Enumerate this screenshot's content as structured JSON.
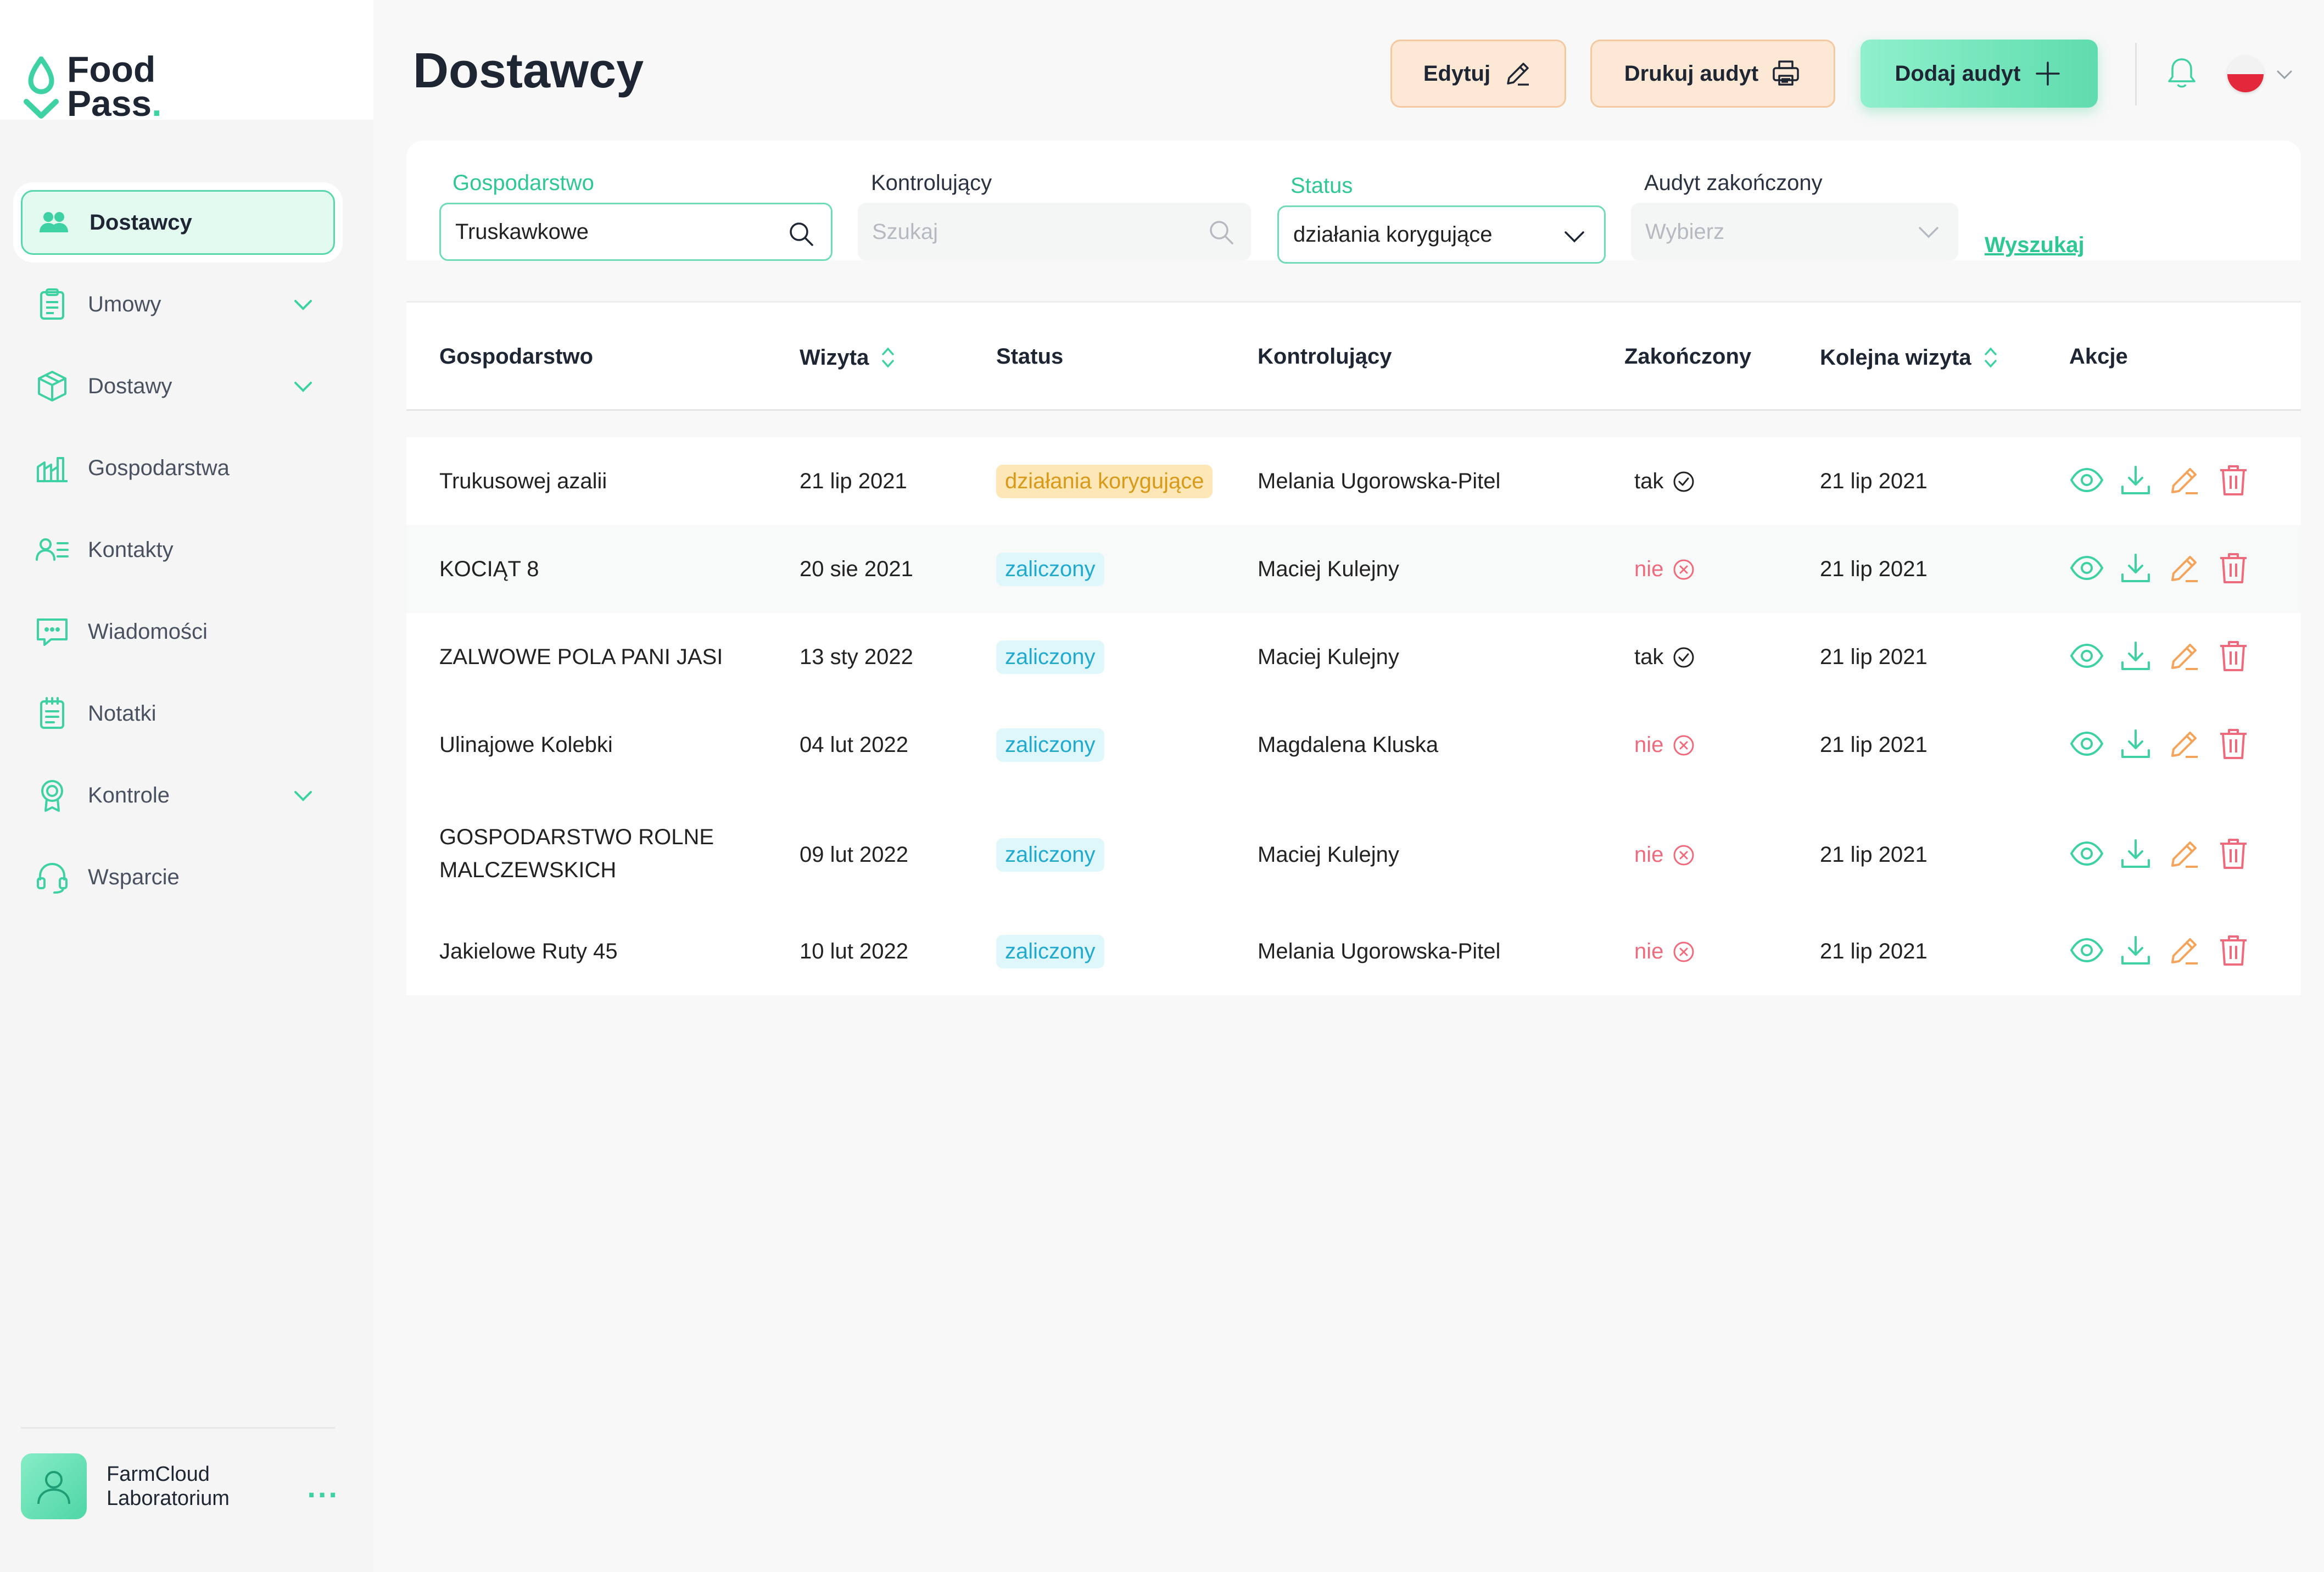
{
  "brand": {
    "line1": "Food",
    "line2": "Pass",
    "dot": "."
  },
  "sidebar": {
    "items": [
      {
        "label": "Dostawcy",
        "icon": "users-icon",
        "active": true
      },
      {
        "label": "Umowy",
        "icon": "clipboard-icon",
        "expandable": true
      },
      {
        "label": "Dostawy",
        "icon": "box-icon",
        "expandable": true
      },
      {
        "label": "Gospodarstwa",
        "icon": "farm-icon"
      },
      {
        "label": "Kontakty",
        "icon": "contacts-icon"
      },
      {
        "label": "Wiadomości",
        "icon": "message-icon"
      },
      {
        "label": "Notatki",
        "icon": "notes-icon"
      },
      {
        "label": "Kontrole",
        "icon": "badge-icon",
        "expandable": true
      },
      {
        "label": "Wsparcie",
        "icon": "headset-icon"
      }
    ],
    "user": {
      "name": "FarmCloud Laboratorium",
      "more": "..."
    }
  },
  "header": {
    "title": "Dostawcy",
    "edit_label": "Edytuj",
    "print_label": "Drukuj audyt",
    "add_label": "Dodaj audyt",
    "language": "PL"
  },
  "filters": {
    "farm": {
      "label": "Gospodarstwo",
      "value": "Truskawkowe"
    },
    "controller": {
      "label": "Kontrolujący",
      "placeholder": "Szukaj"
    },
    "status": {
      "label": "Status",
      "value": "działania korygujące"
    },
    "completed": {
      "label": "Audyt zakończony",
      "placeholder": "Wybierz"
    },
    "search_label": "Wyszukaj"
  },
  "table": {
    "columns": [
      "Gospodarstwo",
      "Wizyta",
      "Status",
      "Kontrolujący",
      "Zakończony",
      "Kolejna wizyta",
      "Akcje"
    ],
    "rows": [
      {
        "farm": "Trukusowej azalii",
        "visit": "21 lip 2021",
        "status": "działania korygujące",
        "status_type": "corrective",
        "controller": "Melania Ugorowska-Pitel",
        "finished": "tak",
        "next_visit": "21 lip 2021"
      },
      {
        "farm": "KOCIĄT 8",
        "visit": "20 sie 2021",
        "status": "zaliczony",
        "status_type": "passed",
        "controller": "Maciej Kulejny",
        "finished": "nie",
        "next_visit": "21 lip 2021"
      },
      {
        "farm": "ZALWOWE POLA PANI JASI",
        "visit": "13 sty 2022",
        "status": "zaliczony",
        "status_type": "passed",
        "controller": "Maciej Kulejny",
        "finished": "tak",
        "next_visit": "21 lip 2021"
      },
      {
        "farm": "Ulinajowe Kolebki",
        "visit": "04 lut 2022",
        "status": "zaliczony",
        "status_type": "passed",
        "controller": "Magdalena Kluska",
        "finished": "nie",
        "next_visit": "21 lip 2021"
      },
      {
        "farm": "GOSPODARSTWO ROLNE MALCZEWSKICH",
        "farm_line1": "GOSPODARSTWO ROLNE",
        "farm_line2": "MALCZEWSKICH",
        "visit": "09 lut 2022",
        "status": "zaliczony",
        "status_type": "passed",
        "controller": "Maciej Kulejny",
        "finished": "nie",
        "next_visit": "21 lip 2021"
      },
      {
        "farm": "Jakielowe Ruty 45",
        "visit": "10 lut 2022",
        "status": "zaliczony",
        "status_type": "passed",
        "controller": "Melania Ugorowska-Pitel",
        "finished": "nie",
        "next_visit": "21 lip 2021"
      }
    ],
    "action_icons": [
      "eye-icon",
      "download-icon",
      "pencil-icon",
      "trash-icon"
    ]
  },
  "colors": {
    "accent": "#3ed1a3",
    "corrective_bg": "#fde7b6",
    "corrective_text": "#d79a1a",
    "passed_bg": "#dff6fb",
    "passed_text": "#21aacd",
    "no_text": "#ee6b7d",
    "edit_btn_bg": "#fde8d6"
  }
}
